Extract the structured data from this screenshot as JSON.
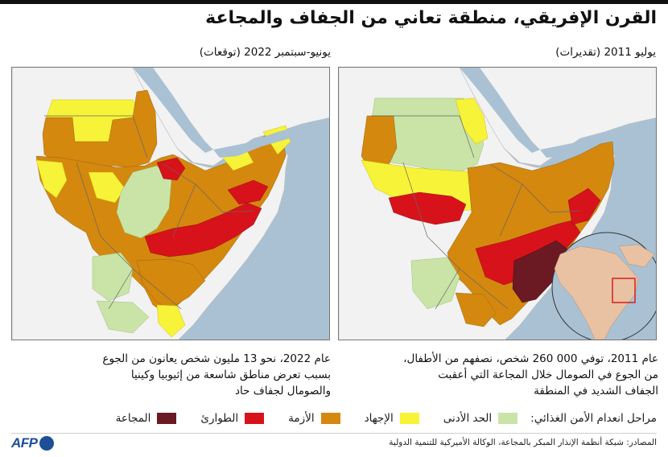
{
  "title": "القرن الإفريقي، منطقة تعاني من الجفاف والمجاعة",
  "maps": {
    "left": {
      "label": "يونيو-سبتمبر 2022 (توقعات)",
      "caption_line1": "عام 2022، نحو 13 مليون شخص يعانون من الجوع",
      "caption_line2": "بسبب تعرض مناطق شاسعة من إثيوبيا وكينيا",
      "caption_line3": "والصومال لجفاف حاد"
    },
    "right": {
      "label": "يوليو 2011 (تقديرات)",
      "caption_line1": "عام 2011، توفي 000 260 شخص، نصفهم من الأطفال،",
      "caption_line2": "من الجوع في الصومال خلال المجاعة التي أعقبت",
      "caption_line3": "الجفاف الشديد في المنطقة"
    }
  },
  "legend": {
    "title": "مراحل انعدام الأمن الغذائي:",
    "items": [
      {
        "label": "الحد الأدنى",
        "color": "#c9e4a6"
      },
      {
        "label": "الإجهاد",
        "color": "#f6f338"
      },
      {
        "label": "الأزمة",
        "color": "#d4880e"
      },
      {
        "label": "الطوارئ",
        "color": "#d8121b"
      },
      {
        "label": "المجاعة",
        "color": "#6b1a24"
      }
    ]
  },
  "colors": {
    "sea": "#a9c1d3",
    "land_other": "#f2f2f2",
    "inset_africa": "#e9c2a3",
    "inset_box": "#d42020",
    "afp_blue": "#1d4f99"
  },
  "footer": {
    "sources": "المصادر: شبكة أنظمة الإنذار المبكر بالمجاعة، الوكالة الأميركية للتنمية الدولية",
    "logo_text": "AFP"
  }
}
